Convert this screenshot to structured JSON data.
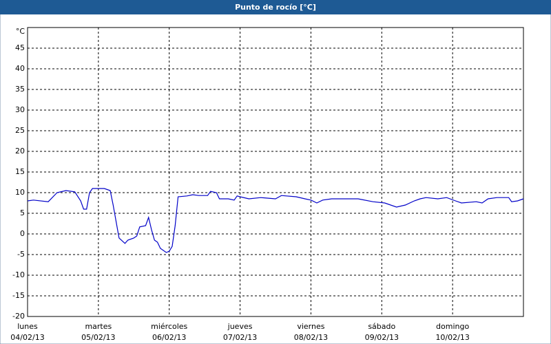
{
  "chart_data": {
    "type": "line",
    "title": "Punto de rocío [°C]",
    "y_unit": "°C",
    "x": [
      0,
      2,
      7,
      10,
      13,
      16,
      18,
      19,
      20,
      21,
      22,
      24,
      26,
      28,
      29,
      30,
      31,
      33,
      34,
      36,
      37,
      38,
      40,
      41,
      42,
      43,
      44,
      45,
      47,
      48,
      49,
      50,
      51,
      54,
      56,
      58,
      61,
      62,
      64,
      65,
      68,
      70,
      71,
      72,
      75,
      79,
      84,
      86,
      91,
      94,
      96,
      98,
      100,
      103,
      107,
      112,
      117,
      121,
      125,
      128,
      131,
      133,
      135,
      139,
      142,
      145,
      147,
      152,
      154,
      156,
      159,
      163,
      164,
      166,
      168
    ],
    "series": [
      {
        "color": "#0000c8",
        "values": [
          8,
          8.2,
          7.8,
          10,
          10.5,
          10.2,
          8,
          6,
          6,
          10,
          11,
          11,
          11,
          10.5,
          7,
          3,
          -1,
          -2.3,
          -1.5,
          -1,
          -0.5,
          1.7,
          2,
          4,
          1,
          -1.5,
          -2,
          -3.5,
          -4.5,
          -4.2,
          -3,
          2,
          9,
          9.2,
          9.5,
          9.3,
          9.3,
          10.3,
          10,
          8.5,
          8.5,
          8.2,
          9.2,
          9,
          8.5,
          8.8,
          8.5,
          9.3,
          9,
          8.5,
          8.2,
          7.5,
          8.2,
          8.5,
          8.5,
          8.5,
          7.8,
          7.5,
          6.5,
          7,
          8,
          8.5,
          8.8,
          8.5,
          8.8,
          8,
          7.5,
          7.8,
          7.5,
          8.5,
          8.8,
          8.8,
          7.8,
          8,
          8.5
        ]
      }
    ],
    "xlim": [
      0,
      168
    ],
    "xticks": [
      {
        "value": 0,
        "label": "lunes",
        "date": "04/02/13"
      },
      {
        "value": 24,
        "label": "martes",
        "date": "05/02/13"
      },
      {
        "value": 48,
        "label": "miércoles",
        "date": "06/02/13"
      },
      {
        "value": 72,
        "label": "jueves",
        "date": "07/02/13"
      },
      {
        "value": 96,
        "label": "viernes",
        "date": "08/02/13"
      },
      {
        "value": 120,
        "label": "sábado",
        "date": "09/02/13"
      },
      {
        "value": 144,
        "label": "domingo",
        "date": "10/02/13"
      }
    ],
    "ylim": [
      -20,
      50
    ],
    "yticks": [
      -20,
      -15,
      -10,
      -5,
      0,
      5,
      10,
      15,
      20,
      25,
      30,
      35,
      40,
      45
    ],
    "grid": true
  }
}
